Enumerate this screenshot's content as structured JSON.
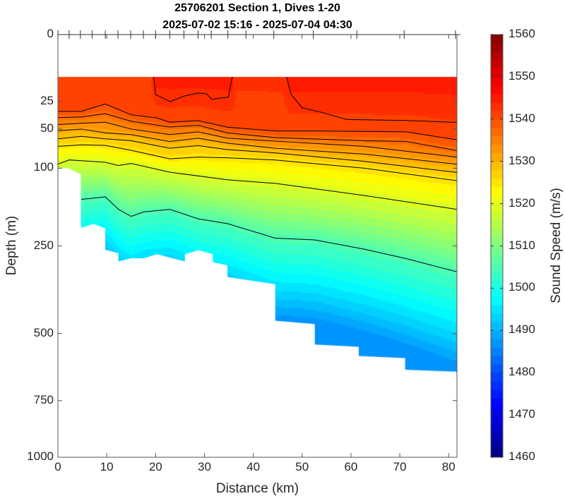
{
  "title": {
    "line1": "25706201 Section 1, Dives 1-20",
    "line2": "2025-07-02 15:16 - 2025-07-04 04:30"
  },
  "chart_data": {
    "type": "heatmap",
    "subtype": "filled contour section",
    "title": "25706201 Section 1, Dives 1-20 / 2025-07-02 15:16 - 2025-07-04 04:30",
    "xlabel": "Distance (km)",
    "ylabel": "Depth (m)",
    "xlim": [
      0,
      81.7
    ],
    "ylim": [
      0,
      1000
    ],
    "y_scale": "sqrt",
    "y_reversed": true,
    "x_ticks": [
      0,
      10,
      20,
      30,
      40,
      50,
      60,
      70,
      80
    ],
    "y_ticks": [
      0,
      25,
      50,
      100,
      250,
      500,
      750,
      1000
    ],
    "colorbar": {
      "label": "Sound Speed (m/s)",
      "range": [
        1460,
        1560
      ],
      "ticks": [
        1460,
        1470,
        1480,
        1490,
        1500,
        1510,
        1520,
        1530,
        1540,
        1550,
        1560
      ],
      "colormap": "jet",
      "step": 2
    },
    "data_top_depth": 10,
    "dive_positions_km": [
      0,
      2.3,
      4.6,
      7.0,
      9.7,
      12.3,
      14.9,
      17.5,
      20.0,
      22.9,
      25.8,
      28.7,
      31.4,
      34.8,
      38.5,
      44.2,
      52.3,
      61.2,
      70.9,
      81.4
    ],
    "surface_speed": [
      [
        0,
        1542
      ],
      [
        19,
        1542
      ],
      [
        20,
        1545
      ],
      [
        35.7,
        1545
      ],
      [
        36.5,
        1542.5
      ],
      [
        46,
        1542.5
      ],
      [
        47.5,
        1545
      ],
      [
        81.7,
        1545
      ]
    ],
    "deep_speed": 1488,
    "bottom_profile": [
      [
        0,
        100
      ],
      [
        2.1,
        100
      ],
      [
        4.7,
        109
      ],
      [
        4.7,
        209
      ],
      [
        7.35,
        201
      ],
      [
        9.7,
        210
      ],
      [
        9.7,
        259
      ],
      [
        12.4,
        268
      ],
      [
        12.4,
        288
      ],
      [
        15,
        280
      ],
      [
        17.6,
        280
      ],
      [
        20.3,
        270
      ],
      [
        26,
        288
      ],
      [
        26,
        270
      ],
      [
        28.8,
        260
      ],
      [
        31.7,
        270
      ],
      [
        31.7,
        290
      ],
      [
        34.7,
        298
      ],
      [
        34.7,
        329
      ],
      [
        38.7,
        337
      ],
      [
        44.5,
        349
      ],
      [
        44.5,
        458
      ],
      [
        52.6,
        469
      ],
      [
        52.6,
        538
      ],
      [
        61.6,
        546
      ],
      [
        61.6,
        578
      ],
      [
        71.1,
        586
      ],
      [
        71.1,
        629
      ],
      [
        81.7,
        636
      ]
    ],
    "contours": [
      {
        "level": 1543,
        "fill": false,
        "points": [
          [
            19.6,
            10
          ],
          [
            20,
            20.1
          ],
          [
            23,
            25.2
          ],
          [
            25.9,
            21.1
          ],
          [
            28.8,
            19.1
          ],
          [
            30.5,
            19.8
          ],
          [
            31.5,
            23.4
          ],
          [
            34.9,
            21.9
          ],
          [
            35.7,
            10
          ]
        ]
      },
      {
        "level": 1543,
        "fill": false,
        "points": [
          [
            46.8,
            10
          ],
          [
            47.7,
            19.8
          ],
          [
            50,
            30
          ],
          [
            53.5,
            33.3
          ],
          [
            59.2,
            40.4
          ],
          [
            71.3,
            41.3
          ],
          [
            81.7,
            43.1
          ]
        ]
      },
      {
        "level": 1540,
        "fill": true,
        "points": [
          [
            0,
            33
          ],
          [
            4.8,
            33
          ],
          [
            9.7,
            27
          ],
          [
            15,
            36
          ],
          [
            20.3,
            39
          ],
          [
            22.9,
            43
          ],
          [
            28.7,
            41.5
          ],
          [
            34.7,
            48
          ],
          [
            44.5,
            52
          ],
          [
            52.3,
            52
          ],
          [
            71.3,
            53
          ],
          [
            81.7,
            62
          ]
        ]
      },
      {
        "level": 1537,
        "fill": true,
        "points": [
          [
            0,
            38.6
          ],
          [
            4.8,
            38
          ],
          [
            9.7,
            35
          ],
          [
            15,
            42
          ],
          [
            22.9,
            47.8
          ],
          [
            28.7,
            46
          ],
          [
            34.7,
            54
          ],
          [
            44.5,
            59.4
          ],
          [
            62.8,
            63
          ],
          [
            71.3,
            64
          ],
          [
            81.7,
            75.3
          ]
        ]
      },
      {
        "level": 1534,
        "fill": true,
        "points": [
          [
            0,
            45.4
          ],
          [
            4.8,
            44
          ],
          [
            9.7,
            43
          ],
          [
            15,
            50
          ],
          [
            22.9,
            56
          ],
          [
            28.7,
            53
          ],
          [
            34.7,
            60
          ],
          [
            44.5,
            63.6
          ],
          [
            62.8,
            70
          ],
          [
            81.7,
            84.1
          ]
        ]
      },
      {
        "level": 1531,
        "fill": true,
        "points": [
          [
            0,
            51.6
          ],
          [
            4.8,
            50
          ],
          [
            9.7,
            54
          ],
          [
            15,
            56
          ],
          [
            22.9,
            64
          ],
          [
            28.7,
            60
          ],
          [
            34.7,
            66
          ],
          [
            44.5,
            72.3
          ],
          [
            62.8,
            80
          ],
          [
            81.7,
            94
          ]
        ]
      },
      {
        "level": 1528,
        "fill": true,
        "points": [
          [
            0,
            60.8
          ],
          [
            4.8,
            58
          ],
          [
            9.7,
            60.8
          ],
          [
            15,
            63
          ],
          [
            22.9,
            72.3
          ],
          [
            28.7,
            69
          ],
          [
            34.7,
            74
          ],
          [
            44.5,
            78.4
          ],
          [
            62.8,
            90
          ],
          [
            81.7,
            106.4
          ]
        ]
      },
      {
        "level": 1525,
        "fill": true,
        "points": [
          [
            0,
            69.9
          ],
          [
            4.8,
            68
          ],
          [
            9.7,
            68.7
          ],
          [
            15,
            75
          ],
          [
            22.9,
            86.4
          ],
          [
            28.7,
            84
          ],
          [
            34.7,
            85
          ],
          [
            44.5,
            88
          ],
          [
            62.8,
            100
          ],
          [
            81.7,
            119.5
          ]
        ]
      },
      {
        "level": 1519,
        "fill": true,
        "points": [
          [
            0,
            94
          ],
          [
            2.3,
            88
          ],
          [
            4.8,
            89
          ],
          [
            9.7,
            91.3
          ],
          [
            12.4,
            96
          ],
          [
            15,
            93
          ],
          [
            22.9,
            106
          ],
          [
            34.7,
            118
          ],
          [
            44.5,
            124
          ],
          [
            62.8,
            145
          ],
          [
            81.7,
            171
          ]
        ]
      },
      {
        "level": 1505,
        "fill": true,
        "points": [
          [
            4.8,
            152
          ],
          [
            9.7,
            147.5
          ],
          [
            12.4,
            171
          ],
          [
            15,
            185
          ],
          [
            17.6,
            176
          ],
          [
            22.9,
            171
          ],
          [
            28.7,
            190
          ],
          [
            34.7,
            200
          ],
          [
            44.5,
            232
          ],
          [
            52.6,
            236
          ],
          [
            62.8,
            258
          ],
          [
            71.3,
            281
          ],
          [
            81.7,
            315
          ]
        ]
      }
    ]
  }
}
